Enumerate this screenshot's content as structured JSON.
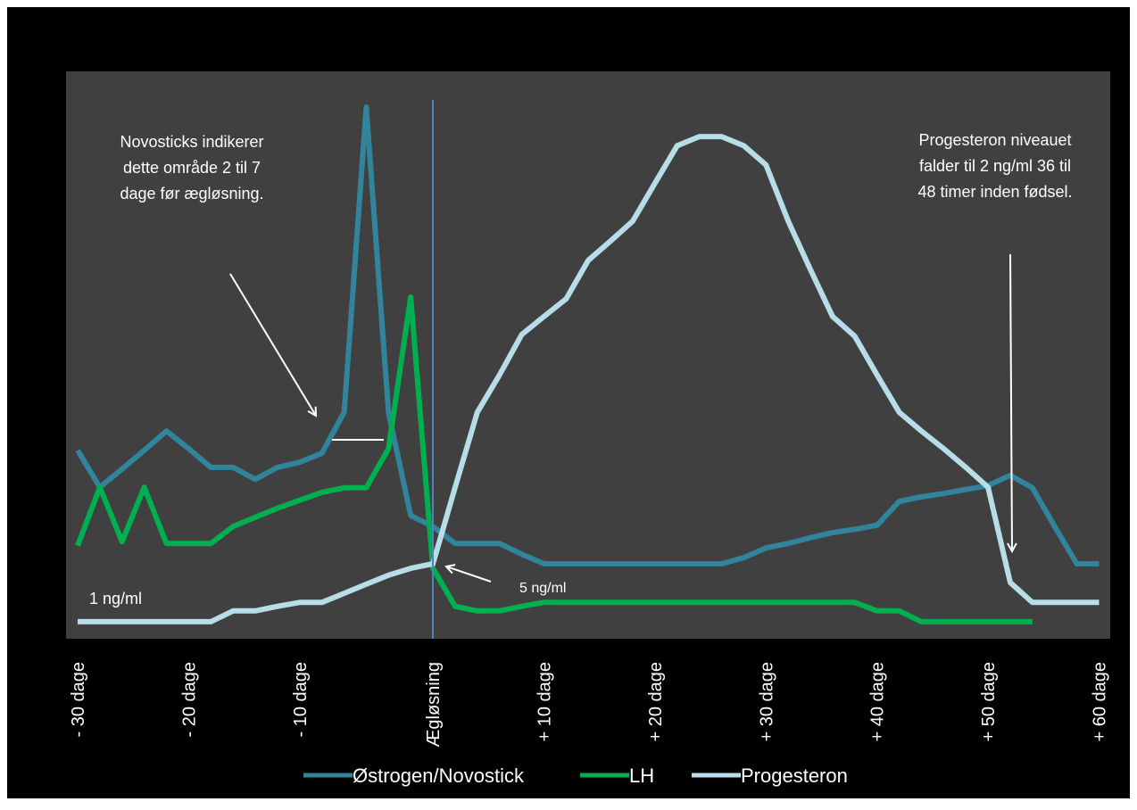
{
  "chart_data": {
    "type": "line",
    "categories": [
      "- 30 dage",
      null,
      null,
      null,
      null,
      "- 20 dage",
      null,
      null,
      null,
      null,
      "- 10 dage",
      null,
      null,
      null,
      null,
      null,
      "Ægløsning",
      null,
      null,
      null,
      null,
      "+ 10 dage",
      null,
      null,
      null,
      null,
      "+ 20 dage",
      null,
      null,
      null,
      null,
      "+ 30 dage",
      null,
      null,
      null,
      null,
      "+ 40 dage",
      null,
      null,
      null,
      null,
      "+ 50 dage",
      null,
      null,
      null,
      null,
      "+ 60 dage"
    ],
    "series": [
      {
        "name": "Østrogen/Novostick",
        "color": "#31849b",
        "values": [
          33.2,
          26.7,
          29.9,
          33.2,
          36.6,
          33.5,
          30.2,
          30.2,
          28.1,
          30.2,
          31.1,
          32.7,
          39.9,
          93.7,
          39.9,
          21.7,
          19.8,
          16.8,
          16.8,
          16.8,
          14.9,
          13.2,
          13.2,
          13.2,
          13.2,
          13.2,
          13.2,
          13.2,
          13.2,
          13.2,
          14.3,
          16.0,
          16.8,
          17.8,
          18.7,
          19.3,
          20.0,
          24.2,
          25.0,
          25.6,
          26.3,
          27.0,
          28.8,
          26.6,
          19.8,
          13.2,
          13.2
        ]
      },
      {
        "name": "LH",
        "color": "#00b050",
        "values": [
          16.4,
          26.7,
          17.1,
          26.7,
          16.8,
          16.8,
          16.8,
          19.8,
          21.4,
          23.0,
          24.4,
          25.8,
          26.6,
          26.6,
          33.5,
          60.2,
          12.4,
          5.7,
          4.9,
          4.9,
          5.7,
          6.4,
          6.4,
          6.4,
          6.4,
          6.4,
          6.4,
          6.4,
          6.4,
          6.4,
          6.4,
          6.4,
          6.4,
          6.4,
          6.4,
          6.4,
          4.9,
          4.9,
          3.0,
          3.0,
          3.0,
          3.0,
          3.0,
          3.0,
          null,
          null,
          null
        ]
      },
      {
        "name": "Progesteron",
        "color": "#b7dde8",
        "values": [
          3.0,
          3.0,
          3.0,
          3.0,
          3.0,
          3.0,
          3.0,
          4.9,
          4.9,
          5.7,
          6.4,
          6.4,
          8.0,
          9.6,
          11.2,
          12.4,
          13.2,
          26.7,
          39.9,
          46.5,
          53.6,
          56.8,
          59.9,
          66.7,
          70.1,
          73.6,
          80.3,
          86.9,
          88.5,
          88.5,
          86.9,
          83.5,
          73.6,
          65.1,
          56.8,
          53.3,
          46.5,
          39.9,
          36.6,
          33.5,
          30.2,
          26.7,
          9.9,
          6.4,
          6.4,
          6.4,
          6.4
        ]
      }
    ],
    "ylim": [
      0,
      100
    ],
    "annotations": [
      [
        "Novosticks  indikerer",
        "dette område 2 til 7",
        "dage før ægløsning."
      ],
      [
        "Progesteron niveauet",
        "falder til 2 ng/ml 36 til",
        "48 timer inden fødsel."
      ],
      [
        "1 ng/ml"
      ],
      [
        "5 ng/ml"
      ]
    ]
  }
}
